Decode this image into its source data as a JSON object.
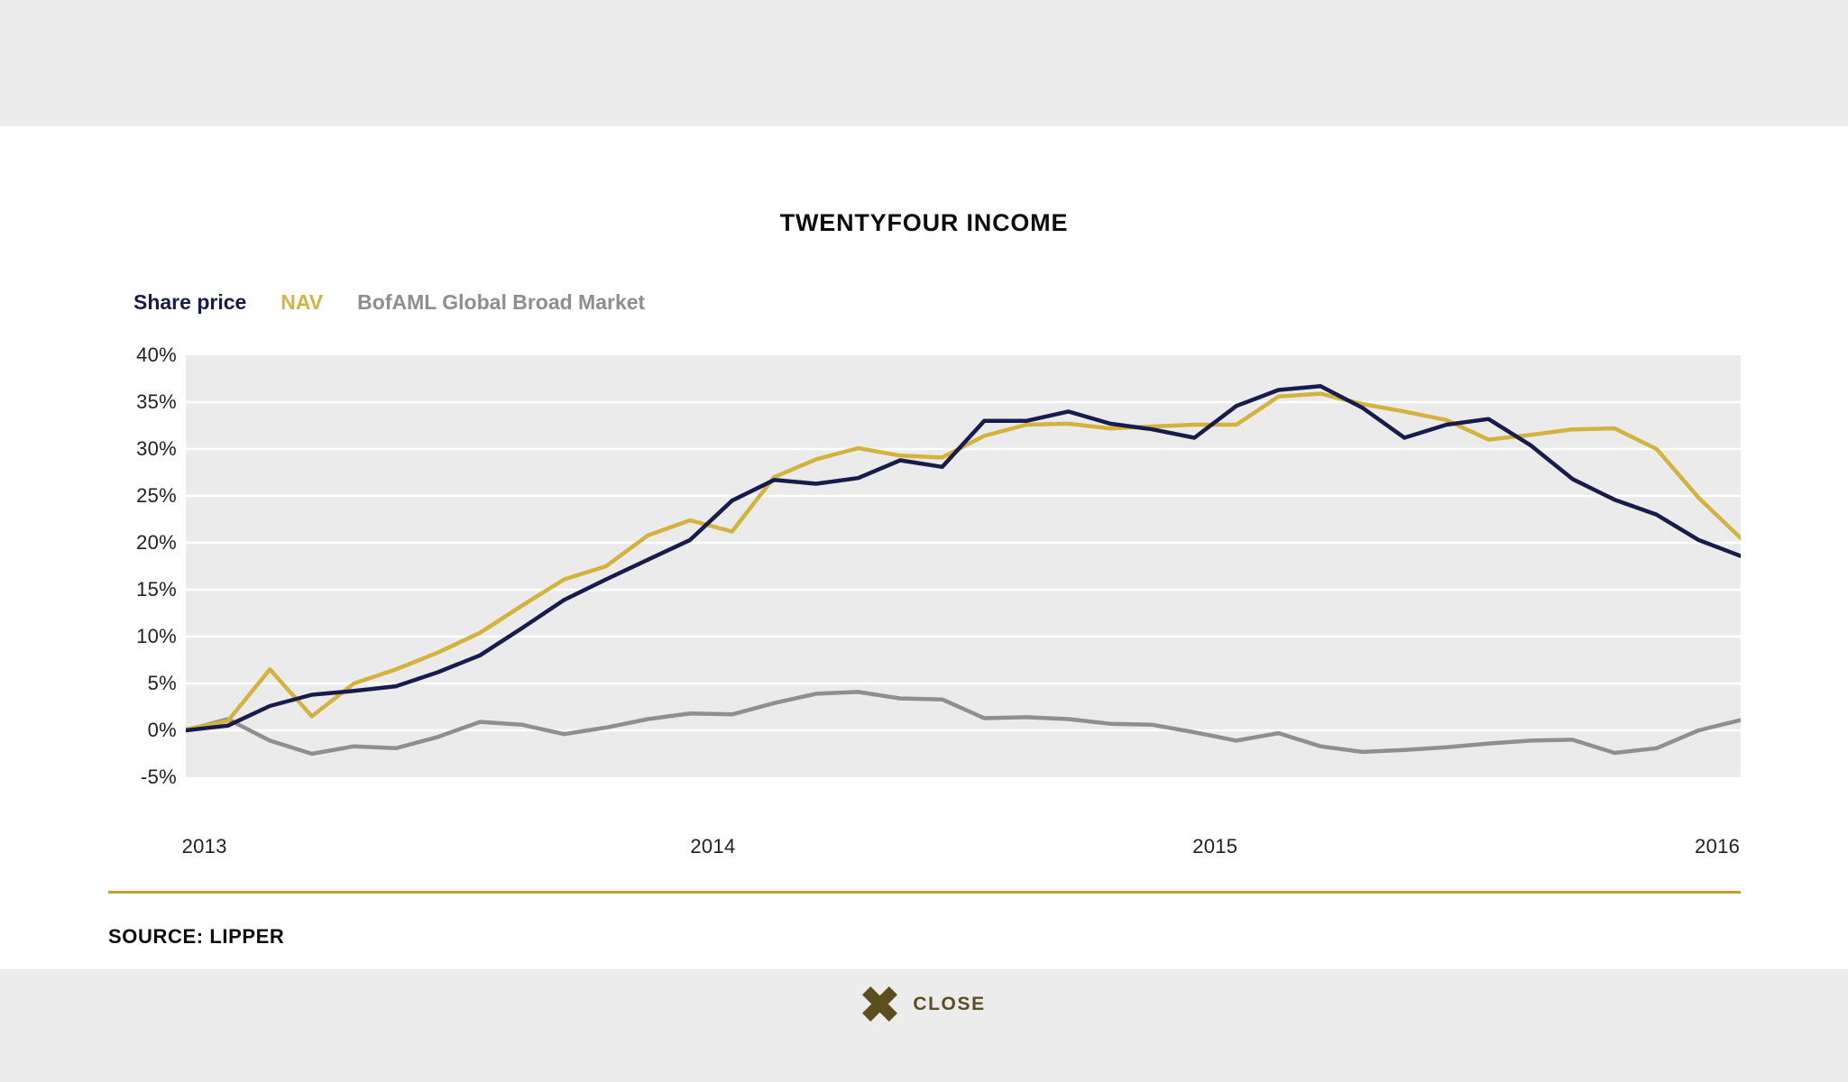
{
  "title": "TWENTYFOUR INCOME",
  "source": "SOURCE: LIPPER",
  "close": {
    "label": "CLOSE"
  },
  "colors": {
    "share_price": "#171c4d",
    "nav": "#d3b23d",
    "bofaml": "#8f8f8f",
    "plot_background": "#ebebeb",
    "gridline": "#ffffff",
    "band_background": "#ececec",
    "divider_gold": "#c5a22e",
    "close_olive": "#5b4f1d",
    "legend_gray_text": "#8e8e8e"
  },
  "chart_data": {
    "type": "line",
    "title": "TWENTYFOUR INCOME",
    "xlabel": "",
    "ylabel": "",
    "ylim": [
      -5,
      40
    ],
    "grid": true,
    "legend_position": "top-left",
    "y_tick_labels": [
      "40%",
      "35%",
      "30%",
      "25%",
      "20%",
      "15%",
      "10%",
      "5%",
      "0%",
      "-5%"
    ],
    "y_tick_values": [
      40,
      35,
      30,
      25,
      20,
      15,
      10,
      5,
      0,
      -5
    ],
    "x_tick_labels": [
      "2013",
      "2014",
      "2015",
      "2016"
    ],
    "x_tick_positions": [
      0.012,
      0.339,
      0.662,
      0.985
    ],
    "x_unit": "monthly points, Jan 2013 - Feb 2016",
    "series": [
      {
        "name": "Share price",
        "color": "#171c4d",
        "values": [
          0.0,
          0.5,
          2.6,
          3.8,
          4.2,
          4.7,
          6.2,
          8.0,
          10.9,
          13.9,
          16.1,
          18.2,
          20.3,
          24.5,
          26.7,
          26.3,
          26.9,
          28.8,
          28.1,
          33.0,
          33.0,
          34.0,
          32.7,
          32.1,
          31.2,
          34.6,
          36.3,
          36.7,
          34.4,
          31.2,
          32.6,
          33.2,
          30.4,
          26.8,
          24.6,
          23.0,
          20.3,
          18.6
        ]
      },
      {
        "name": "NAV",
        "color": "#d3b23d",
        "values": [
          0.1,
          1.0,
          6.5,
          1.5,
          5.0,
          6.5,
          8.3,
          10.4,
          13.3,
          16.1,
          17.5,
          20.8,
          22.4,
          21.2,
          27.0,
          28.9,
          30.1,
          29.3,
          29.1,
          31.4,
          32.6,
          32.7,
          32.2,
          32.4,
          32.6,
          32.6,
          35.6,
          35.9,
          34.8,
          34.0,
          33.1,
          31.0,
          31.5,
          32.1,
          32.2,
          30.0,
          24.8,
          20.5
        ]
      },
      {
        "name": "BofAML Global Broad Market",
        "color": "#8f8f8f",
        "values": [
          0.0,
          1.2,
          -1.1,
          -2.5,
          -1.7,
          -1.9,
          -0.7,
          0.9,
          0.6,
          -0.4,
          0.3,
          1.2,
          1.8,
          1.7,
          2.9,
          3.9,
          4.1,
          3.4,
          3.3,
          1.3,
          1.4,
          1.2,
          0.7,
          0.6,
          -0.2,
          -1.1,
          -0.3,
          -1.7,
          -2.3,
          -2.1,
          -1.8,
          -1.4,
          -1.1,
          -1.0,
          -2.4,
          -1.9,
          0.0,
          1.1
        ]
      }
    ]
  }
}
